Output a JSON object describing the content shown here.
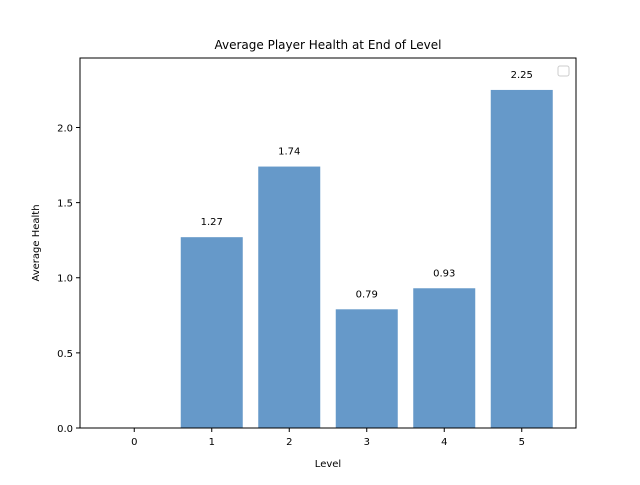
{
  "chart_data": {
    "type": "bar",
    "title": "Average Player Health at End of Level",
    "xlabel": "Level",
    "ylabel": "Average Health",
    "categories": [
      "0",
      "1",
      "2",
      "3",
      "4",
      "5"
    ],
    "values": [
      0,
      1.27,
      1.74,
      0.79,
      0.93,
      2.25
    ],
    "data_labels": [
      "",
      "1.27",
      "1.74",
      "0.79",
      "0.93",
      "2.25"
    ],
    "y_ticks": [
      0.0,
      0.5,
      1.0,
      1.5,
      2.0
    ],
    "y_tick_labels": [
      "0.0",
      "0.5",
      "1.0",
      "1.5",
      "2.0"
    ],
    "ylim": [
      0,
      2.4625
    ],
    "xlim": [
      -0.7,
      5.7
    ],
    "bar_color": "#6699c9",
    "grid": false,
    "legend": {
      "position": "top-right",
      "entries": []
    }
  }
}
